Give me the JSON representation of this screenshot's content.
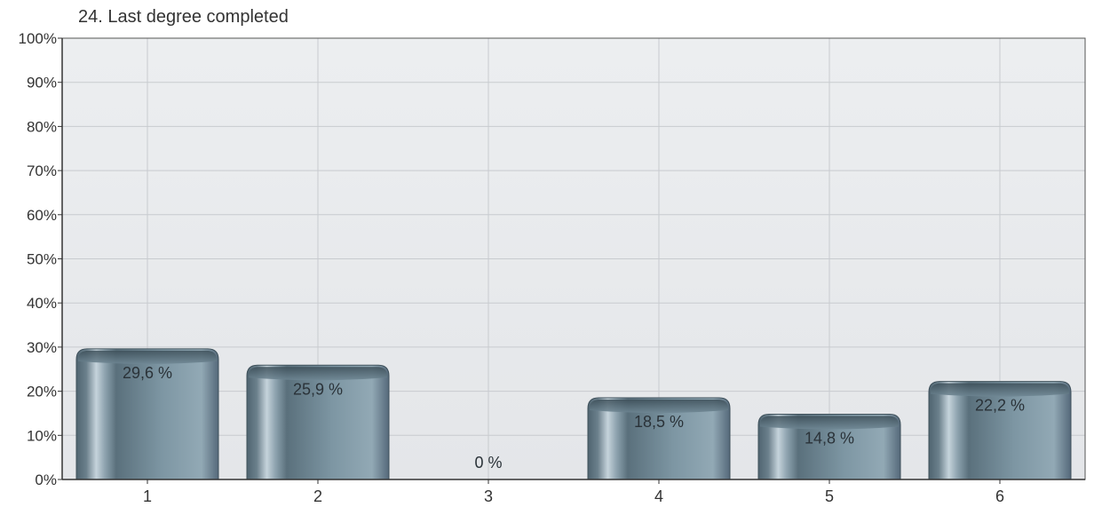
{
  "chart_data": {
    "type": "bar",
    "title": "24. Last degree completed",
    "categories": [
      "1",
      "2",
      "3",
      "4",
      "5",
      "6"
    ],
    "values": [
      29.6,
      25.9,
      0,
      18.5,
      14.8,
      22.2
    ],
    "value_labels": [
      "29,6 %",
      "25,9 %",
      "0 %",
      "18,5 %",
      "14,8 %",
      "22,2 %"
    ],
    "ylim": [
      0,
      100
    ],
    "yticks": [
      0,
      10,
      20,
      30,
      40,
      50,
      60,
      70,
      80,
      90,
      100
    ],
    "ytick_labels": [
      "0%",
      "10%",
      "20%",
      "30%",
      "40%",
      "50%",
      "60%",
      "70%",
      "80%",
      "90%",
      "100%"
    ],
    "xlabel": "",
    "ylabel": "",
    "grid": true,
    "colors": {
      "bar_dark": "#4f6470",
      "bar_mid": "#7d96a3",
      "bar_light": "#c5d3db",
      "plot_bg": "#e4e6e9",
      "grid": "#c8cbcf",
      "axis": "#333333"
    }
  }
}
